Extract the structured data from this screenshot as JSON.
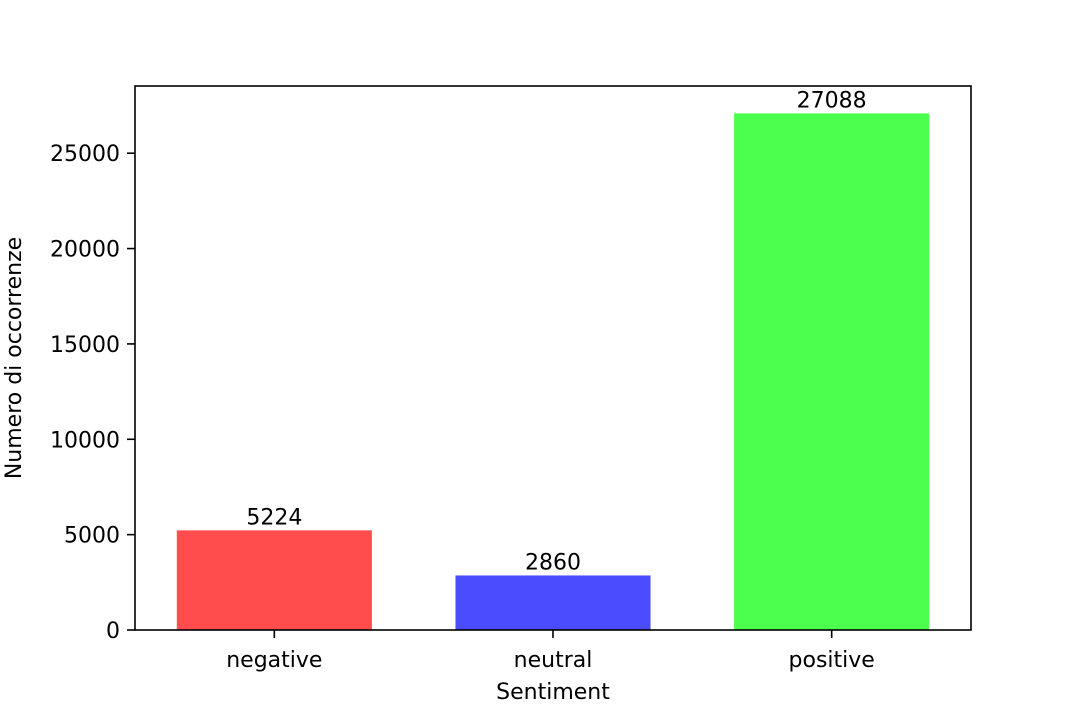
{
  "chart_data": {
    "type": "bar",
    "title": "",
    "xlabel": "Sentiment",
    "ylabel": "Numero di occorrenze",
    "categories": [
      "negative",
      "neutral",
      "positive"
    ],
    "values": [
      5224,
      2860,
      27088
    ],
    "data_labels": [
      "5224",
      "2860",
      "27088"
    ],
    "colors": [
      "#ff4c4c",
      "#4c4cff",
      "#4cff4c"
    ],
    "ylim": [
      0,
      28524
    ],
    "yticks": [
      0,
      5000,
      10000,
      15000,
      20000,
      25000
    ],
    "ytick_labels": [
      "0",
      "5000",
      "10000",
      "15000",
      "20000",
      "25000"
    ],
    "grid": false,
    "legend": "none"
  }
}
